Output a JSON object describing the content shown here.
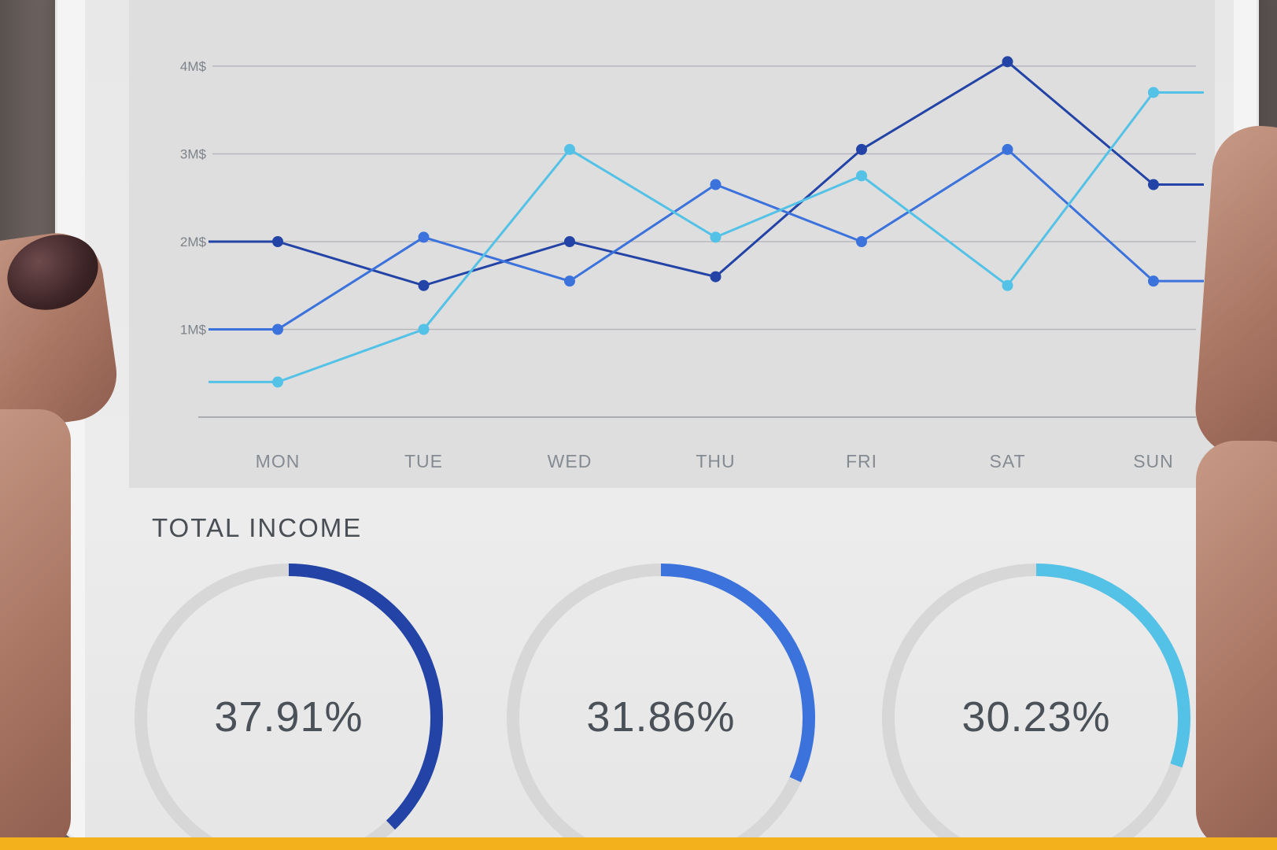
{
  "chart_data": [
    {
      "type": "line",
      "categories": [
        "MON",
        "TUE",
        "WED",
        "THU",
        "FRI",
        "SAT",
        "SUN"
      ],
      "y_ticks": [
        "1M$",
        "2M$",
        "3M$",
        "4M$"
      ],
      "ylim": [
        0,
        4.2
      ],
      "grid": true,
      "series": [
        {
          "color": "#2344a6",
          "values": [
            2.0,
            1.5,
            2.0,
            1.6,
            3.05,
            4.05,
            2.65
          ],
          "tail": 2.65
        },
        {
          "color": "#3c72dc",
          "values": [
            1.0,
            2.05,
            1.55,
            2.65,
            2.0,
            3.05,
            1.55
          ],
          "tail": 1.55
        },
        {
          "color": "#54c2e6",
          "values": [
            0.4,
            1.0,
            3.05,
            2.05,
            2.75,
            1.5,
            3.7
          ],
          "tail": 3.7
        }
      ]
    },
    {
      "type": "pie",
      "title": "TOTAL INCOME",
      "values": [
        37.91,
        31.86,
        30.23
      ],
      "labels": [
        "37.91%",
        "31.86%",
        "30.23%"
      ],
      "colors": [
        "#2344a6",
        "#3c72dc",
        "#54c2e6"
      ]
    }
  ]
}
